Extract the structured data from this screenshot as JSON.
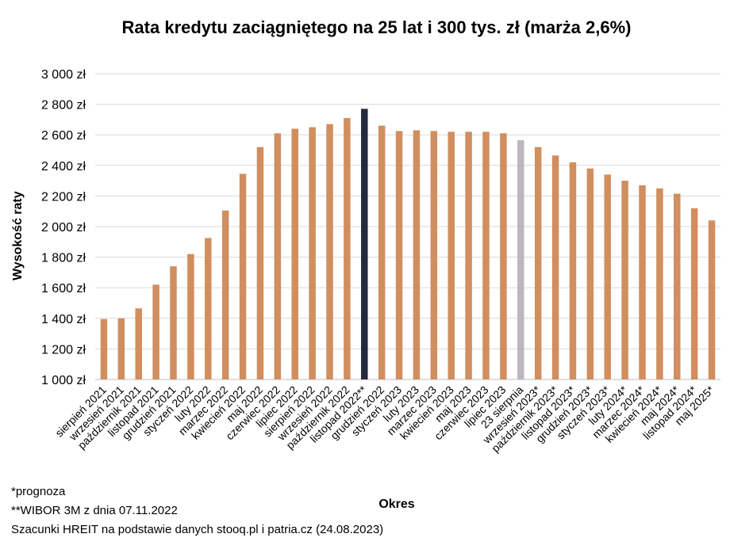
{
  "chart_data": {
    "type": "bar",
    "title": "Rata kredytu zaciągniętego na 25 lat i 300 tys. zł (marża 2,6%)",
    "xlabel": "Okres",
    "ylabel": "Wysokość raty",
    "ylim": [
      1000,
      3000
    ],
    "yticks": [
      1000,
      1200,
      1400,
      1600,
      1800,
      2000,
      2200,
      2400,
      2600,
      2800,
      3000
    ],
    "ytick_labels": [
      "1 000 zł",
      "1 200 zł",
      "1 400 zł",
      "1 600 zł",
      "1 800 zł",
      "2 000 zł",
      "2 200 zł",
      "2 400 zł",
      "2 600 zł",
      "2 800 zł",
      "3 000 zł"
    ],
    "grid": true,
    "categories": [
      "sierpień 2021",
      "wrzesień 2021",
      "październik 2021",
      "listopad 2021",
      "grudzień 2021",
      "styczeń 2022",
      "luty 2022",
      "marzec 2022",
      "kwiecień 2022",
      "maj 2022",
      "czerwiec 2022",
      "lipiec 2022",
      "sierpień 2022",
      "wrzesień 2022",
      "październik 2022",
      "listopad 2022**",
      "grudzień 2022",
      "styczeń 2023",
      "luty 2023",
      "marzec 2023",
      "kwiecień 2023",
      "maj 2023",
      "czerwiec 2023",
      "lipiec 2023",
      "23 sierpnia",
      "wrzesień 2023*",
      "październik 2023*",
      "listopad 2023*",
      "grudzień 2023*",
      "styczeń 2023*",
      "luty 2024*",
      "marzec 2024*",
      "kwiecień 2024*",
      "maj 2024*",
      "listopad 2024*",
      "maj 2025*"
    ],
    "values": [
      1395,
      1400,
      1465,
      1620,
      1740,
      1820,
      1925,
      2105,
      2345,
      2520,
      2610,
      2640,
      2650,
      2670,
      2710,
      2770,
      2660,
      2625,
      2630,
      2625,
      2620,
      2620,
      2620,
      2610,
      2565,
      2520,
      2465,
      2420,
      2380,
      2340,
      2300,
      2270,
      2250,
      2215,
      2120,
      2040
    ],
    "bar_colors": [
      "#D18E5F",
      "#D18E5F",
      "#D18E5F",
      "#D18E5F",
      "#D18E5F",
      "#D18E5F",
      "#D18E5F",
      "#D18E5F",
      "#D18E5F",
      "#D18E5F",
      "#D18E5F",
      "#D18E5F",
      "#D18E5F",
      "#D18E5F",
      "#D18E5F",
      "#232A3C",
      "#D18E5F",
      "#D18E5F",
      "#D18E5F",
      "#D18E5F",
      "#D18E5F",
      "#D18E5F",
      "#D18E5F",
      "#D18E5F",
      "#BDB6C1",
      "#D18E5F",
      "#D18E5F",
      "#D18E5F",
      "#D18E5F",
      "#D18E5F",
      "#D18E5F",
      "#D18E5F",
      "#D18E5F",
      "#D18E5F",
      "#D18E5F",
      "#D18E5F"
    ],
    "gridline_color": "#D9D9D9",
    "axis_color": "#BFBFBF"
  },
  "notes": {
    "forecast": "*prognoza",
    "wibor": "**WIBOR 3M z dnia 07.11.2022",
    "source": "Szacunki HREIT na podstawie danych stooq.pl i patria.cz (24.08.2023)"
  }
}
